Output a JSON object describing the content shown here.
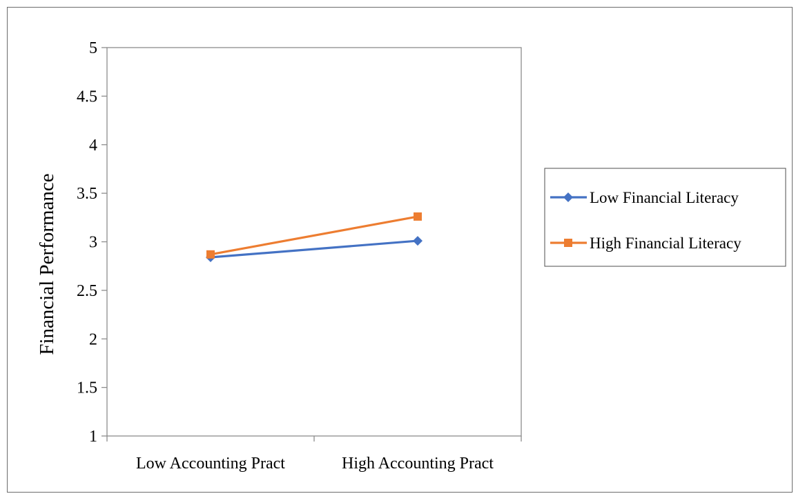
{
  "chart_data": {
    "type": "line",
    "title": "",
    "xlabel": "",
    "ylabel": "Financial Performance",
    "categories": [
      "Low Accounting Pract",
      "High Accounting Pract"
    ],
    "ylim": [
      1,
      5
    ],
    "y_ticks": [
      "1",
      "1.5",
      "2",
      "2.5",
      "3",
      "3.5",
      "4",
      "4.5",
      "5"
    ],
    "grid": false,
    "legend_position": "right",
    "series": [
      {
        "name": "Low Financial Literacy",
        "values": [
          2.84,
          3.01
        ],
        "color": "#4472C4",
        "marker": "diamond"
      },
      {
        "name": "High Financial Literacy",
        "values": [
          2.87,
          3.26
        ],
        "color": "#ED7D31",
        "marker": "square"
      }
    ]
  }
}
